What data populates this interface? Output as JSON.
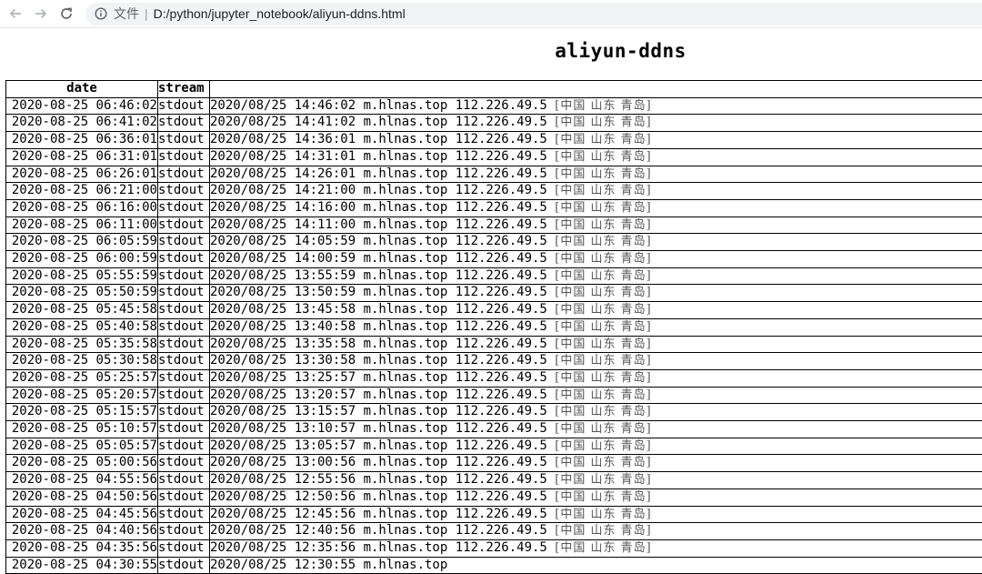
{
  "browser": {
    "file_label": "文件",
    "url": "D:/python/jupyter_notebook/aliyun-ddns.html"
  },
  "page": {
    "title": "aliyun-ddns"
  },
  "table": {
    "headers": [
      "date",
      "stream",
      ""
    ],
    "rows": [
      {
        "date": "2020-08-25 06:46:02",
        "stream": "stdout",
        "message": "2020/08/25 14:46:02 m.hlnas.top 112.226.49.5 ",
        "location": "[中国 山东 青岛]"
      },
      {
        "date": "2020-08-25 06:41:02",
        "stream": "stdout",
        "message": "2020/08/25 14:41:02 m.hlnas.top 112.226.49.5 ",
        "location": "[中国 山东 青岛]"
      },
      {
        "date": "2020-08-25 06:36:01",
        "stream": "stdout",
        "message": "2020/08/25 14:36:01 m.hlnas.top 112.226.49.5 ",
        "location": "[中国 山东 青岛]"
      },
      {
        "date": "2020-08-25 06:31:01",
        "stream": "stdout",
        "message": "2020/08/25 14:31:01 m.hlnas.top 112.226.49.5 ",
        "location": "[中国 山东 青岛]"
      },
      {
        "date": "2020-08-25 06:26:01",
        "stream": "stdout",
        "message": "2020/08/25 14:26:01 m.hlnas.top 112.226.49.5 ",
        "location": "[中国 山东 青岛]"
      },
      {
        "date": "2020-08-25 06:21:00",
        "stream": "stdout",
        "message": "2020/08/25 14:21:00 m.hlnas.top 112.226.49.5 ",
        "location": "[中国 山东 青岛]"
      },
      {
        "date": "2020-08-25 06:16:00",
        "stream": "stdout",
        "message": "2020/08/25 14:16:00 m.hlnas.top 112.226.49.5 ",
        "location": "[中国 山东 青岛]"
      },
      {
        "date": "2020-08-25 06:11:00",
        "stream": "stdout",
        "message": "2020/08/25 14:11:00 m.hlnas.top 112.226.49.5 ",
        "location": "[中国 山东 青岛]"
      },
      {
        "date": "2020-08-25 06:05:59",
        "stream": "stdout",
        "message": "2020/08/25 14:05:59 m.hlnas.top 112.226.49.5 ",
        "location": "[中国 山东 青岛]"
      },
      {
        "date": "2020-08-25 06:00:59",
        "stream": "stdout",
        "message": "2020/08/25 14:00:59 m.hlnas.top 112.226.49.5 ",
        "location": "[中国 山东 青岛]"
      },
      {
        "date": "2020-08-25 05:55:59",
        "stream": "stdout",
        "message": "2020/08/25 13:55:59 m.hlnas.top 112.226.49.5 ",
        "location": "[中国 山东 青岛]"
      },
      {
        "date": "2020-08-25 05:50:59",
        "stream": "stdout",
        "message": "2020/08/25 13:50:59 m.hlnas.top 112.226.49.5 ",
        "location": "[中国 山东 青岛]"
      },
      {
        "date": "2020-08-25 05:45:58",
        "stream": "stdout",
        "message": "2020/08/25 13:45:58 m.hlnas.top 112.226.49.5 ",
        "location": "[中国 山东 青岛]"
      },
      {
        "date": "2020-08-25 05:40:58",
        "stream": "stdout",
        "message": "2020/08/25 13:40:58 m.hlnas.top 112.226.49.5 ",
        "location": "[中国 山东 青岛]"
      },
      {
        "date": "2020-08-25 05:35:58",
        "stream": "stdout",
        "message": "2020/08/25 13:35:58 m.hlnas.top 112.226.49.5 ",
        "location": "[中国 山东 青岛]"
      },
      {
        "date": "2020-08-25 05:30:58",
        "stream": "stdout",
        "message": "2020/08/25 13:30:58 m.hlnas.top 112.226.49.5 ",
        "location": "[中国 山东 青岛]"
      },
      {
        "date": "2020-08-25 05:25:57",
        "stream": "stdout",
        "message": "2020/08/25 13:25:57 m.hlnas.top 112.226.49.5 ",
        "location": "[中国 山东 青岛]"
      },
      {
        "date": "2020-08-25 05:20:57",
        "stream": "stdout",
        "message": "2020/08/25 13:20:57 m.hlnas.top 112.226.49.5 ",
        "location": "[中国 山东 青岛]"
      },
      {
        "date": "2020-08-25 05:15:57",
        "stream": "stdout",
        "message": "2020/08/25 13:15:57 m.hlnas.top 112.226.49.5 ",
        "location": "[中国 山东 青岛]"
      },
      {
        "date": "2020-08-25 05:10:57",
        "stream": "stdout",
        "message": "2020/08/25 13:10:57 m.hlnas.top 112.226.49.5 ",
        "location": "[中国 山东 青岛]"
      },
      {
        "date": "2020-08-25 05:05:57",
        "stream": "stdout",
        "message": "2020/08/25 13:05:57 m.hlnas.top 112.226.49.5 ",
        "location": "[中国 山东 青岛]"
      },
      {
        "date": "2020-08-25 05:00:56",
        "stream": "stdout",
        "message": "2020/08/25 13:00:56 m.hlnas.top 112.226.49.5 ",
        "location": "[中国 山东 青岛]"
      },
      {
        "date": "2020-08-25 04:55:56",
        "stream": "stdout",
        "message": "2020/08/25 12:55:56 m.hlnas.top 112.226.49.5 ",
        "location": "[中国 山东 青岛]"
      },
      {
        "date": "2020-08-25 04:50:56",
        "stream": "stdout",
        "message": "2020/08/25 12:50:56 m.hlnas.top 112.226.49.5 ",
        "location": "[中国 山东 青岛]"
      },
      {
        "date": "2020-08-25 04:45:56",
        "stream": "stdout",
        "message": "2020/08/25 12:45:56 m.hlnas.top 112.226.49.5 ",
        "location": "[中国 山东 青岛]"
      },
      {
        "date": "2020-08-25 04:40:56",
        "stream": "stdout",
        "message": "2020/08/25 12:40:56 m.hlnas.top 112.226.49.5 ",
        "location": "[中国 山东 青岛]"
      },
      {
        "date": "2020-08-25 04:35:56",
        "stream": "stdout",
        "message": "2020/08/25 12:35:56 m.hlnas.top 112.226.49.5 ",
        "location": "[中国 山东 青岛]"
      },
      {
        "date": "2020-08-25 04:30:55",
        "stream": "stdout",
        "message": "2020/08/25 12:30:55 m.hlnas.top",
        "location": ""
      }
    ]
  }
}
